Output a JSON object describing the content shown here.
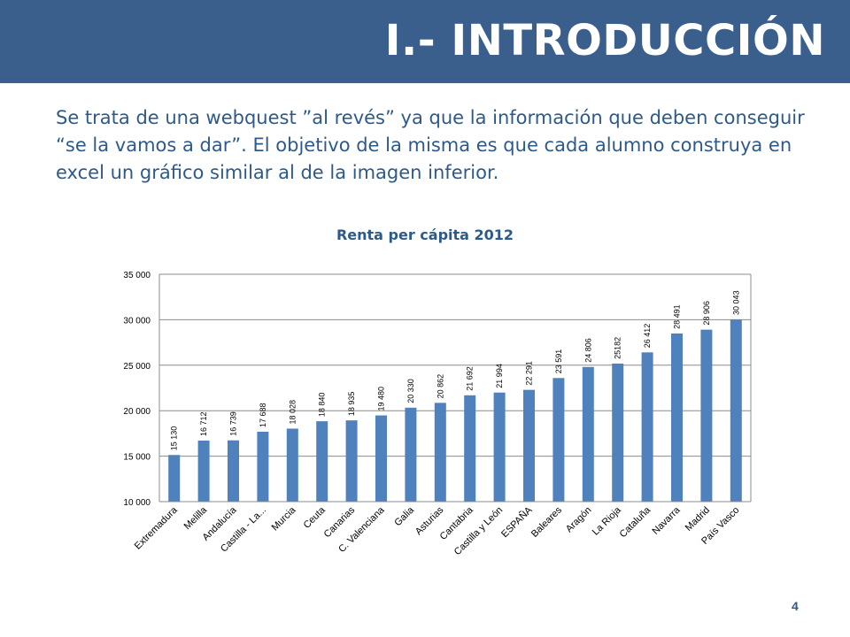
{
  "header": {
    "title": "I.- INTRODUCCIÓN"
  },
  "intro": {
    "text": "Se trata de una webquest ”al revés” ya que la información que deben conseguir “se la vamos a dar”. El objetivo de la misma es que cada alumno construya en excel un gráfico  similar al de la imagen inferior."
  },
  "page_number": "4",
  "colors": {
    "header_bg": "#3a5f8c",
    "text": "#2e5a8a",
    "bar": "#4f81bd"
  },
  "chart_data": {
    "type": "bar",
    "title": "Renta per cápita 2012",
    "categories": [
      "Extremadura",
      "Melilla",
      "Andalucía",
      "Castilla - La...",
      "Murcia",
      "Ceuta",
      "Canarias",
      "C. Valenciana",
      "Galia",
      "Asturias",
      "Cantabria",
      "Castilla y León",
      "ESPAÑA",
      "Baleares",
      "Aragón",
      "La Rioja",
      "Cataluña",
      "Navarra",
      "Madrid",
      "País Vasco"
    ],
    "values": [
      15130,
      16712,
      16739,
      17688,
      18028,
      18840,
      18935,
      19480,
      20330,
      20862,
      21692,
      21994,
      22291,
      23591,
      24806,
      25182,
      26412,
      28491,
      28906,
      30043
    ],
    "data_labels": [
      "15 130",
      "16 712",
      "16 739",
      "17 688",
      "18 028",
      "18 840",
      "18 935",
      "19 480",
      "20 330",
      "20 862",
      "21 692",
      "21 994",
      "22 291",
      "23 591",
      "24 806",
      "25182",
      "26 412",
      "28 491",
      "28 906",
      "30 043"
    ],
    "ylim": [
      10000,
      35000
    ],
    "yticks": [
      10000,
      15000,
      20000,
      25000,
      30000,
      35000
    ],
    "ytick_labels": [
      "10 000",
      "15 000",
      "20 000",
      "25 000",
      "30 000",
      "35 000"
    ],
    "grid": true,
    "legend": "none"
  }
}
